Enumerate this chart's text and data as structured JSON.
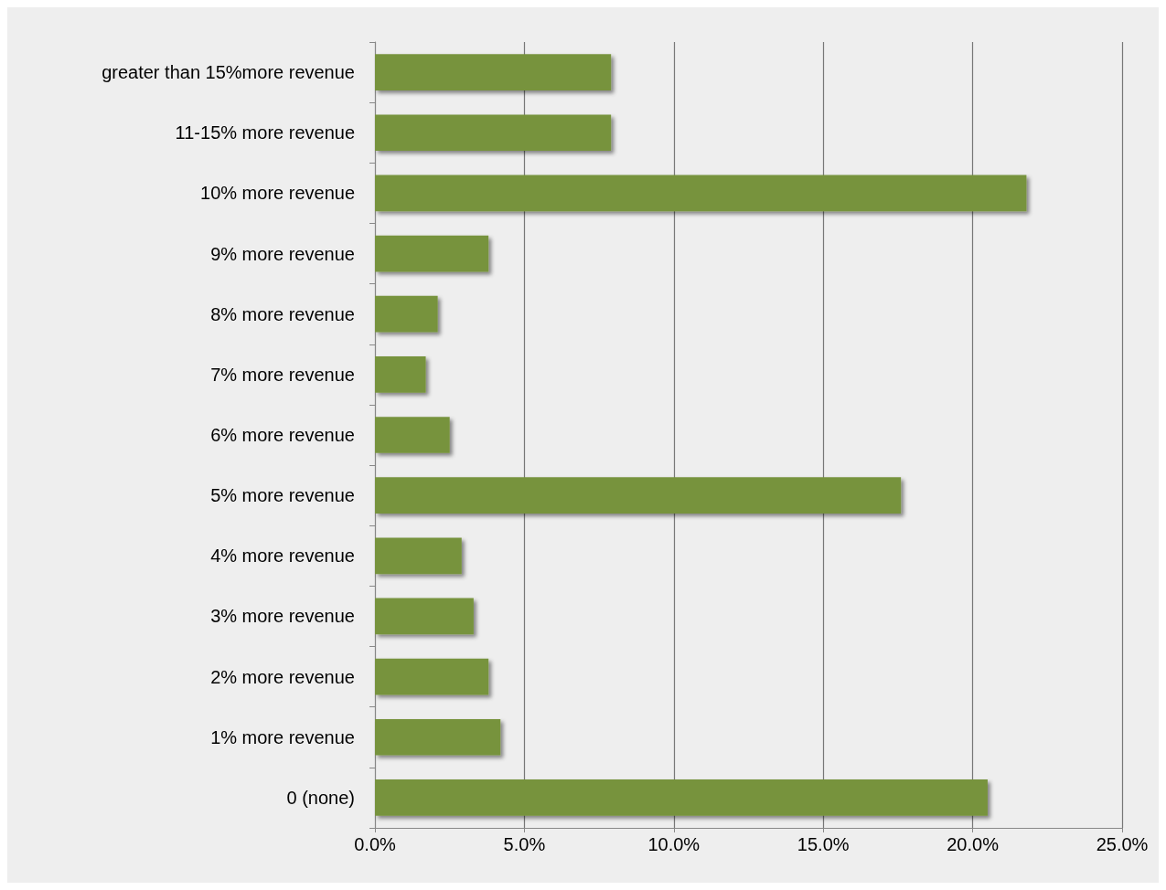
{
  "chart_data": {
    "type": "bar",
    "orientation": "horizontal",
    "categories": [
      "greater than 15%more revenue",
      "11-15% more revenue",
      "10% more revenue",
      "9% more revenue",
      "8% more revenue",
      "7% more revenue",
      "6% more revenue",
      "5% more revenue",
      "4% more revenue",
      "3% more revenue",
      "2% more revenue",
      "1% more revenue",
      "0 (none)"
    ],
    "values": [
      7.9,
      7.9,
      21.8,
      3.8,
      2.1,
      1.7,
      2.5,
      17.6,
      2.9,
      3.3,
      3.8,
      4.2,
      20.5
    ],
    "color": "#77933c",
    "xlim": [
      0,
      25
    ],
    "xticks": [
      {
        "value": 0,
        "label": "0.0%"
      },
      {
        "value": 5,
        "label": "5.0%"
      },
      {
        "value": 10,
        "label": "10.0%"
      },
      {
        "value": 15,
        "label": "15.0%"
      },
      {
        "value": 20,
        "label": "20.0%"
      },
      {
        "value": 25,
        "label": "25.0%"
      }
    ],
    "grid": "x"
  }
}
